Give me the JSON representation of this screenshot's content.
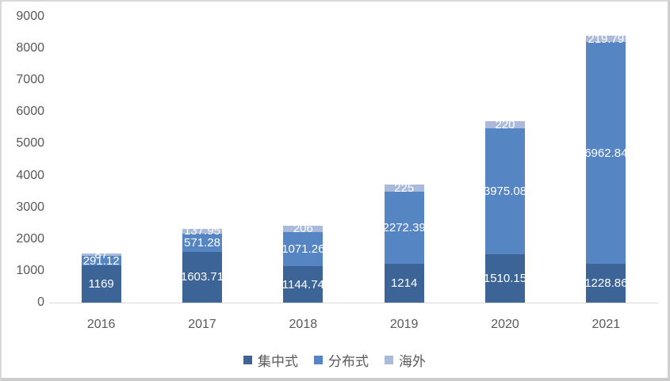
{
  "chart_data": {
    "type": "bar",
    "stacked": true,
    "title": "",
    "categories": [
      "2016",
      "2017",
      "2018",
      "2019",
      "2020",
      "2021"
    ],
    "series": [
      {
        "name": "集中式",
        "color": "#3D6496",
        "values": [
          1169,
          1603.71,
          1144.74,
          1214,
          1510.15,
          1228.86
        ]
      },
      {
        "name": "分布式",
        "color": "#5585C2",
        "values": [
          291.12,
          571.28,
          1071.26,
          2272.39,
          3975.08,
          6962.84
        ]
      },
      {
        "name": "海外",
        "color": "#A9BADB",
        "values": [
          87,
          137.95,
          206,
          225,
          220,
          219.79
        ]
      }
    ],
    "data_labels_shown": true,
    "data_label_color": "#FFFFFF",
    "xlabel": "",
    "ylabel": "",
    "ylim": [
      0,
      9000
    ],
    "ytick_step": 1000,
    "yticks": [
      0,
      1000,
      2000,
      3000,
      4000,
      5000,
      6000,
      7000,
      8000,
      9000
    ],
    "grid": false,
    "legend_position": "bottom",
    "legend_entries": [
      "集中式",
      "分布式",
      "海外"
    ],
    "axis_text_color": "#595959",
    "axis_line_color": "#D9D9D9"
  }
}
